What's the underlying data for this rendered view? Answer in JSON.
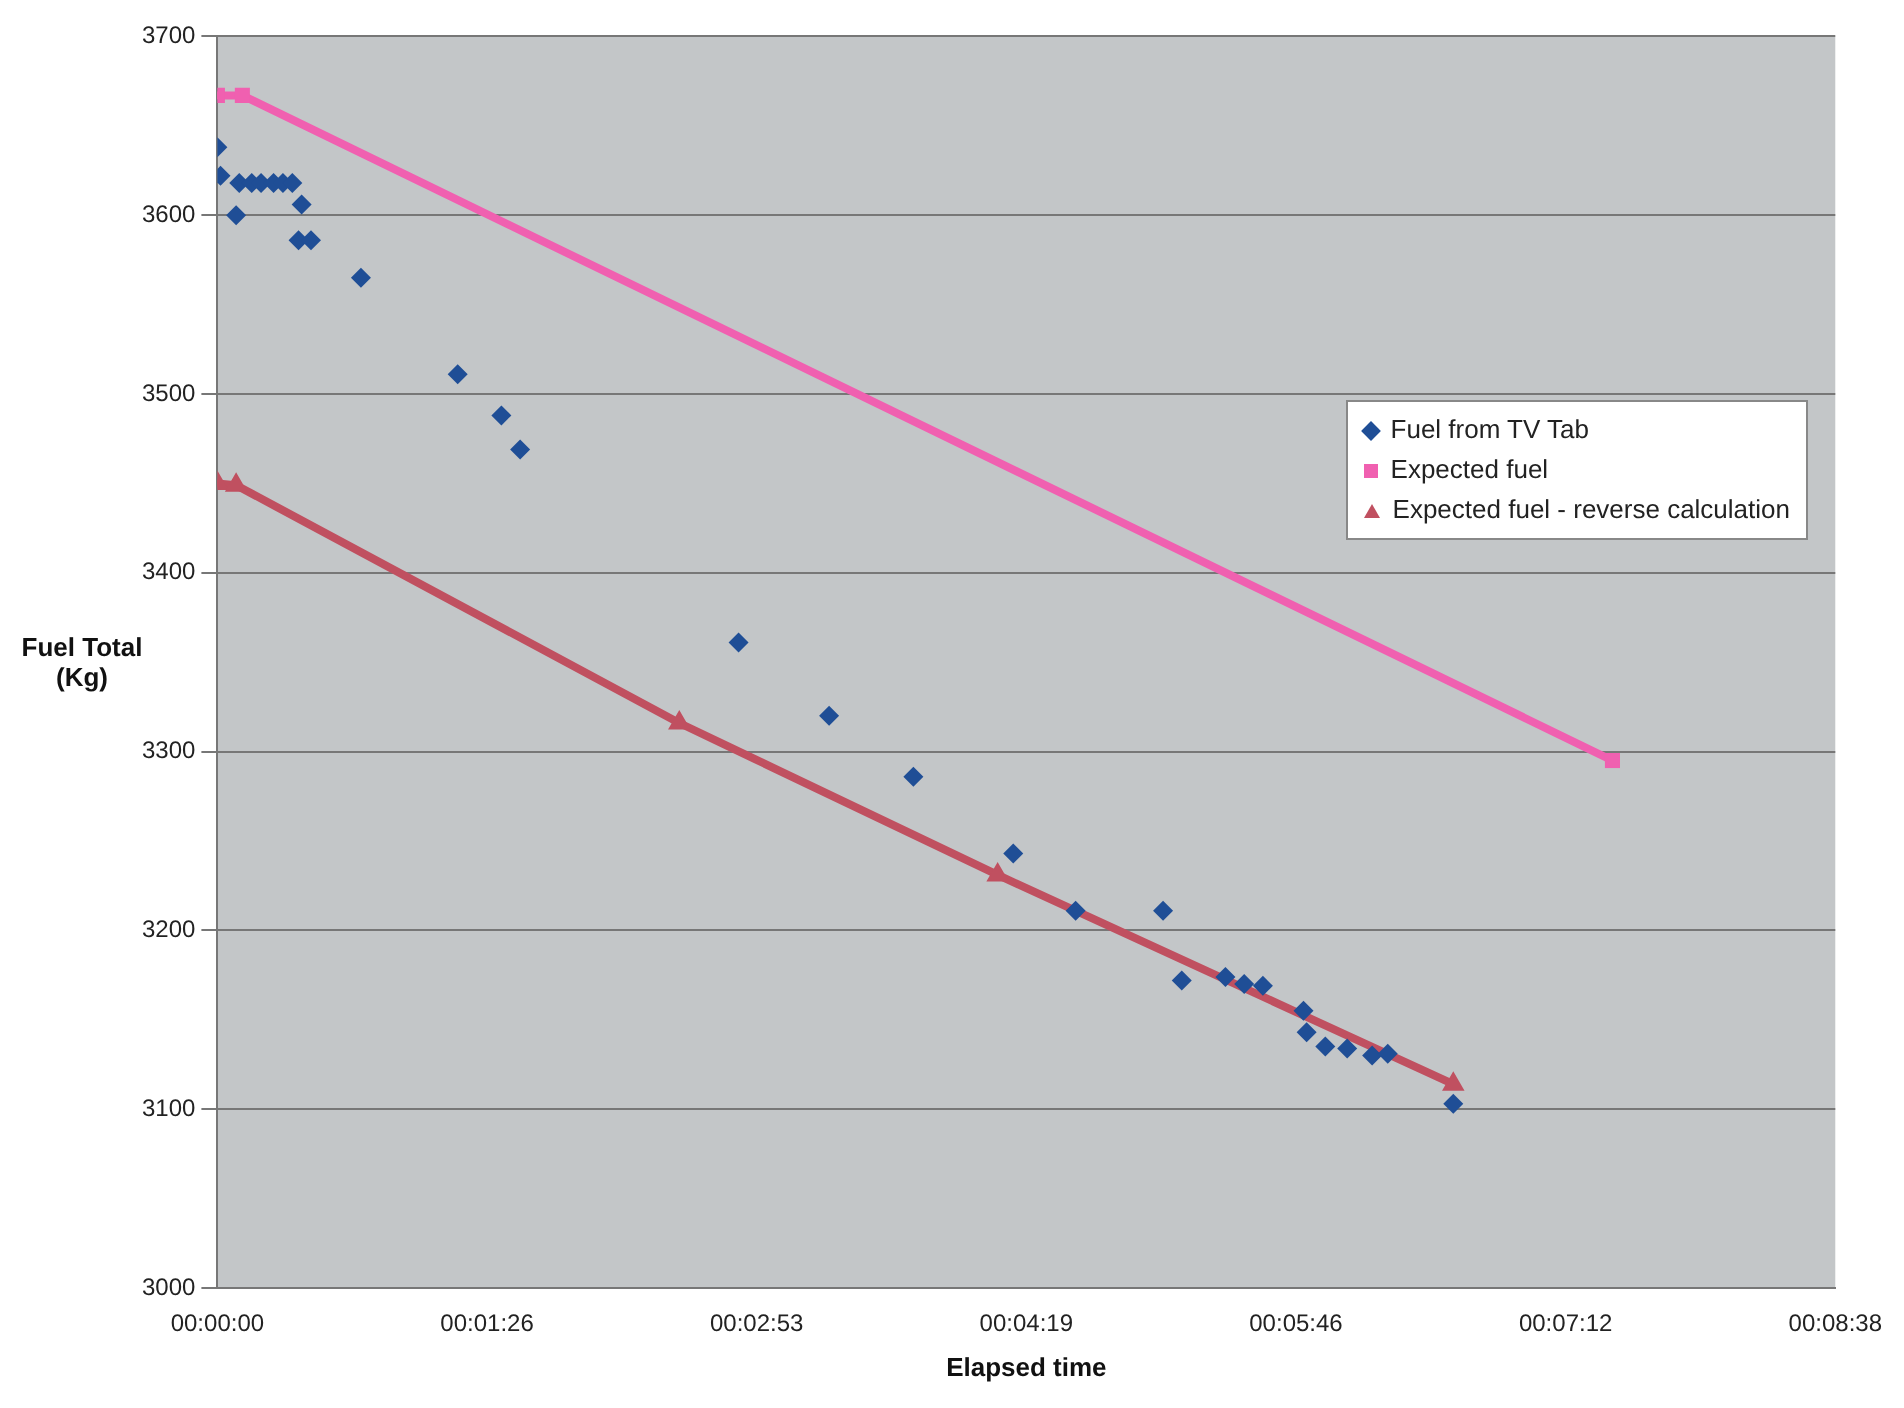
{
  "chart_data": {
    "type": "scatter",
    "xlabel": "Elapsed time",
    "ylabel": "Fuel Total (Kg)",
    "xlim": [
      0,
      518.4
    ],
    "xticks": [
      {
        "value": 0,
        "label": "00:00:00"
      },
      {
        "value": 86.4,
        "label": "00:01:26"
      },
      {
        "value": 172.8,
        "label": "00:02:53"
      },
      {
        "value": 259.2,
        "label": "00:04:19"
      },
      {
        "value": 345.6,
        "label": "00:05:46"
      },
      {
        "value": 432,
        "label": "00:07:12"
      },
      {
        "value": 518.4,
        "label": "00:08:38"
      }
    ],
    "ylim": [
      3000,
      3700
    ],
    "yticks": [
      3000,
      3100,
      3200,
      3300,
      3400,
      3500,
      3600,
      3700
    ],
    "grid": "y",
    "legend": "right",
    "series": [
      {
        "name": "Fuel from TV Tab",
        "type": "scatter",
        "marker": "diamond",
        "color": "#1f4e96",
        "x": [
          0,
          1,
          6,
          7,
          11,
          14,
          18,
          21,
          24,
          27,
          26,
          30,
          46,
          77,
          91,
          97,
          167,
          196,
          223,
          255,
          275,
          303,
          309,
          323,
          329,
          335,
          348,
          349,
          355,
          362,
          370,
          375,
          396
        ],
        "values": [
          3638,
          3622,
          3600,
          3618,
          3618,
          3618,
          3618,
          3618,
          3618,
          3606,
          3586,
          3586,
          3565,
          3511,
          3488,
          3469,
          3361,
          3320,
          3286,
          3243,
          3211,
          3211,
          3172,
          3174,
          3170,
          3169,
          3155,
          3143,
          3135,
          3134,
          3130,
          3131,
          3103
        ]
      },
      {
        "name": "Expected fuel",
        "type": "line",
        "marker": "square",
        "color": "#f060b0",
        "x": [
          0,
          8,
          447
        ],
        "values": [
          3667,
          3667,
          3295
        ]
      },
      {
        "name": "Expected fuel - reverse calculation",
        "type": "line",
        "marker": "triangle",
        "color": "#c05060",
        "x": [
          0,
          6,
          148,
          250,
          396
        ],
        "values": [
          3450,
          3449,
          3316,
          3231,
          3114
        ]
      }
    ]
  }
}
